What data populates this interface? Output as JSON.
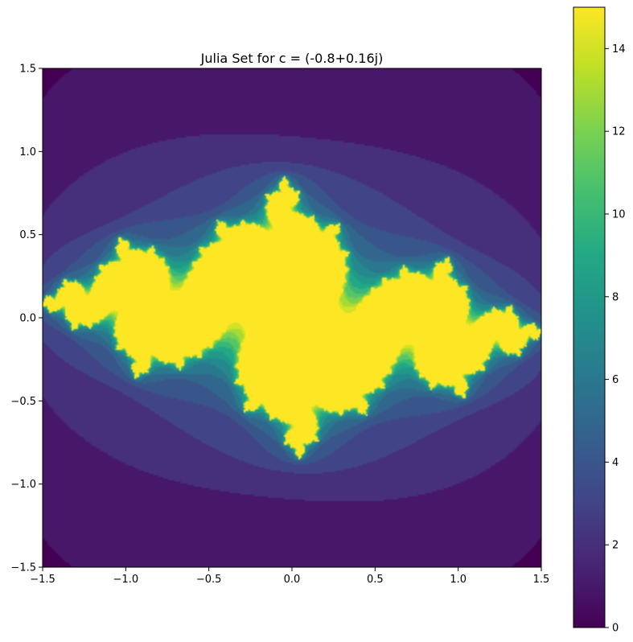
{
  "chart_data": {
    "type": "heatmap",
    "title": "Julia Set for c = (-0.8+0.16j)",
    "xlabel": "",
    "ylabel": "",
    "c_real": -0.8,
    "c_imag": 0.16,
    "xlim": [
      -1.5,
      1.5
    ],
    "ylim": [
      -1.5,
      1.5
    ],
    "x_ticks": [
      -1.5,
      -1.0,
      -0.5,
      0.0,
      0.5,
      1.0,
      1.5
    ],
    "x_tick_labels": [
      "−1.5",
      "−1.0",
      "−0.5",
      "0.0",
      "0.5",
      "1.0",
      "1.5"
    ],
    "y_ticks": [
      -1.5,
      -1.0,
      -0.5,
      0.0,
      0.5,
      1.0,
      1.5
    ],
    "y_tick_labels": [
      "−1.5",
      "−1.0",
      "−0.5",
      "0.0",
      "0.5",
      "1.0",
      "1.5"
    ],
    "value_range": [
      0,
      15
    ],
    "max_iterations": 15,
    "colormap": "viridis",
    "colorbar": {
      "ticks": [
        0,
        2,
        4,
        6,
        8,
        10,
        12,
        14
      ],
      "tick_labels": [
        "0",
        "2",
        "4",
        "6",
        "8",
        "10",
        "12",
        "14"
      ],
      "range": [
        0,
        15
      ],
      "placement": "right"
    },
    "grid": false,
    "legend": "none"
  }
}
